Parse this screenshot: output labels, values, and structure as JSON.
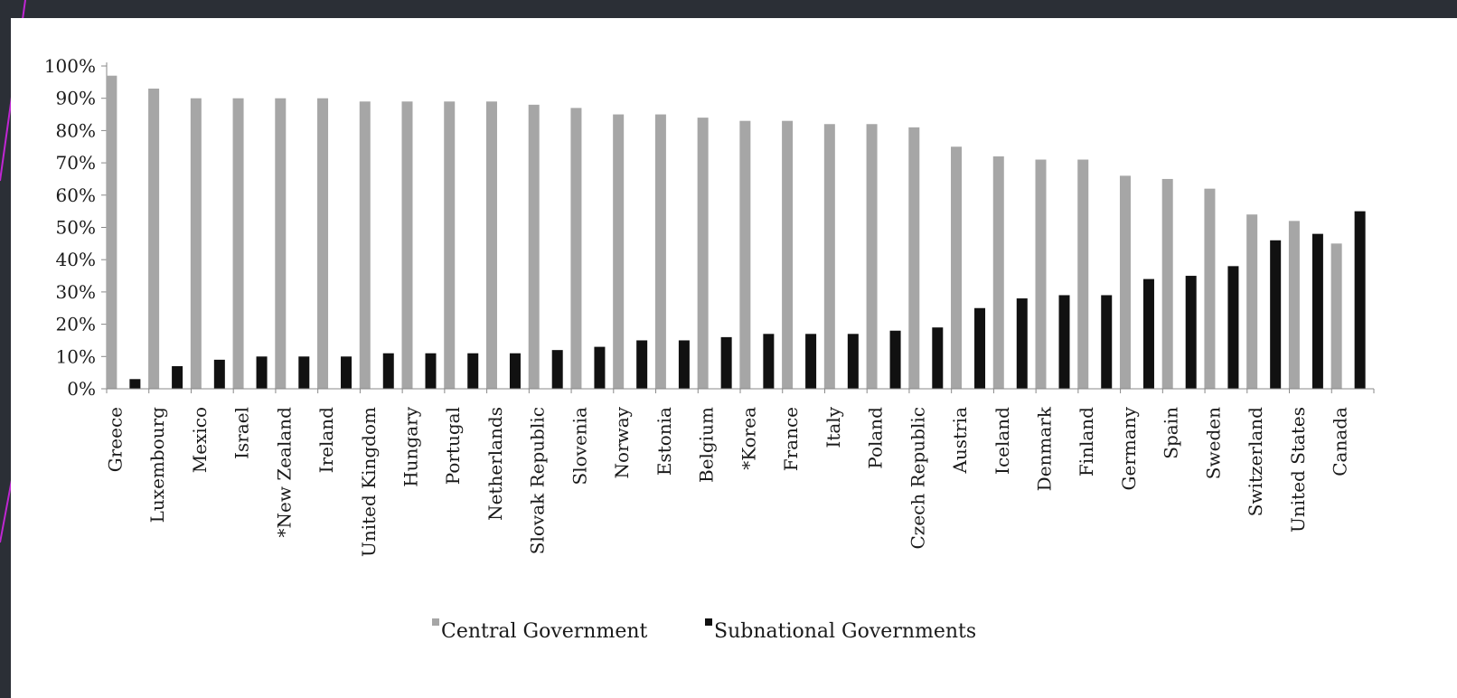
{
  "chart_data": {
    "type": "bar",
    "categories": [
      "Greece",
      "Luxembourg",
      "Mexico",
      "Israel",
      "*New Zealand",
      "Ireland",
      "United Kingdom",
      "Hungary",
      "Portugal",
      "Netherlands",
      "Slovak Republic",
      "Slovenia",
      "Norway",
      "Estonia",
      "Belgium",
      "*Korea",
      "France",
      "Italy",
      "Poland",
      "Czech Republic",
      "Austria",
      "Iceland",
      "Denmark",
      "Finland",
      "Germany",
      "Spain",
      "Sweden",
      "Switzerland",
      "United States",
      "Canada"
    ],
    "series": [
      {
        "name": "Central Government",
        "color": "#a6a6a6",
        "values": [
          97,
          93,
          90,
          90,
          90,
          90,
          89,
          89,
          89,
          89,
          88,
          87,
          85,
          85,
          84,
          83,
          83,
          82,
          82,
          81,
          75,
          72,
          71,
          71,
          66,
          65,
          62,
          54,
          52,
          45
        ]
      },
      {
        "name": "Subnational Governments",
        "color": "#111111",
        "values": [
          3,
          7,
          9,
          10,
          10,
          10,
          11,
          11,
          11,
          11,
          12,
          13,
          15,
          15,
          16,
          17,
          17,
          17,
          18,
          19,
          25,
          28,
          29,
          29,
          34,
          35,
          38,
          46,
          48,
          55
        ]
      }
    ],
    "y_ticks": [
      "0%",
      "10%",
      "20%",
      "30%",
      "40%",
      "50%",
      "60%",
      "70%",
      "80%",
      "90%",
      "100%"
    ],
    "ylim": [
      0,
      100
    ],
    "legend_position": "bottom-center",
    "grid": false
  },
  "colors": {
    "frame_background": "#2b2f36",
    "panel_background": "#ffffff",
    "accent": "#c026d3",
    "axis": "#888888"
  }
}
